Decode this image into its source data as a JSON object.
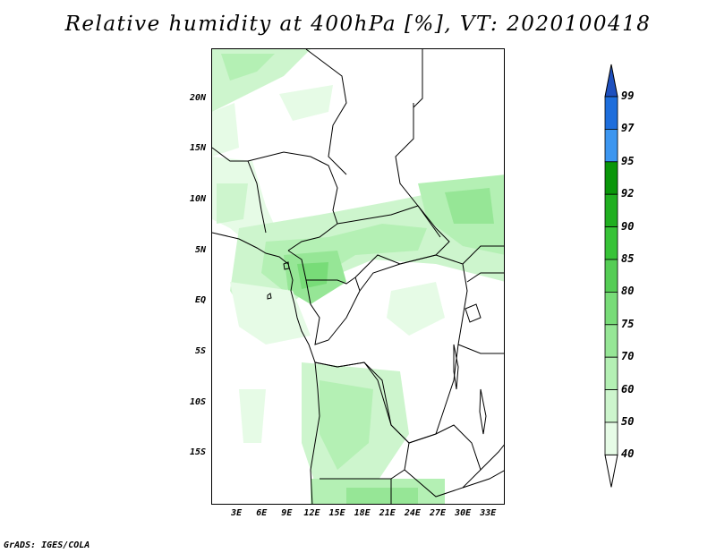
{
  "title": "Relative humidity at 400hPa [%], VT: 2020100418",
  "credit": "GrADS: IGES/COLA",
  "map": {
    "lat_labels": [
      {
        "text": "20N",
        "lat": 20
      },
      {
        "text": "15N",
        "lat": 15
      },
      {
        "text": "10N",
        "lat": 10
      },
      {
        "text": "5N",
        "lat": 5
      },
      {
        "text": "EQ",
        "lat": 0
      },
      {
        "text": "5S",
        "lat": -5
      },
      {
        "text": "10S",
        "lat": -10
      },
      {
        "text": "15S",
        "lat": -15
      }
    ],
    "lon_labels": [
      {
        "text": "3E",
        "lon": 3
      },
      {
        "text": "6E",
        "lon": 6
      },
      {
        "text": "9E",
        "lon": 9
      },
      {
        "text": "12E",
        "lon": 12
      },
      {
        "text": "15E",
        "lon": 15
      },
      {
        "text": "18E",
        "lon": 18
      },
      {
        "text": "21E",
        "lon": 21
      },
      {
        "text": "24E",
        "lon": 24
      },
      {
        "text": "27E",
        "lon": 27
      },
      {
        "text": "30E",
        "lon": 30
      },
      {
        "text": "33E",
        "lon": 33
      }
    ],
    "lon_range": [
      0,
      35
    ],
    "lat_range": [
      -20,
      25
    ]
  },
  "colorbar": {
    "levels": [
      "40",
      "50",
      "60",
      "70",
      "75",
      "80",
      "85",
      "90",
      "92",
      "95",
      "97",
      "99"
    ],
    "colors": [
      "#ffffff",
      "#e6fbe6",
      "#cdf5cd",
      "#b4f0b4",
      "#96e696",
      "#78dc78",
      "#55cd55",
      "#37c337",
      "#20af20",
      "#0a960a",
      "#3c96f0",
      "#1e6edc",
      "#1e50be"
    ]
  },
  "palette": {
    "background": "#ffffff",
    "border": "#000000"
  }
}
